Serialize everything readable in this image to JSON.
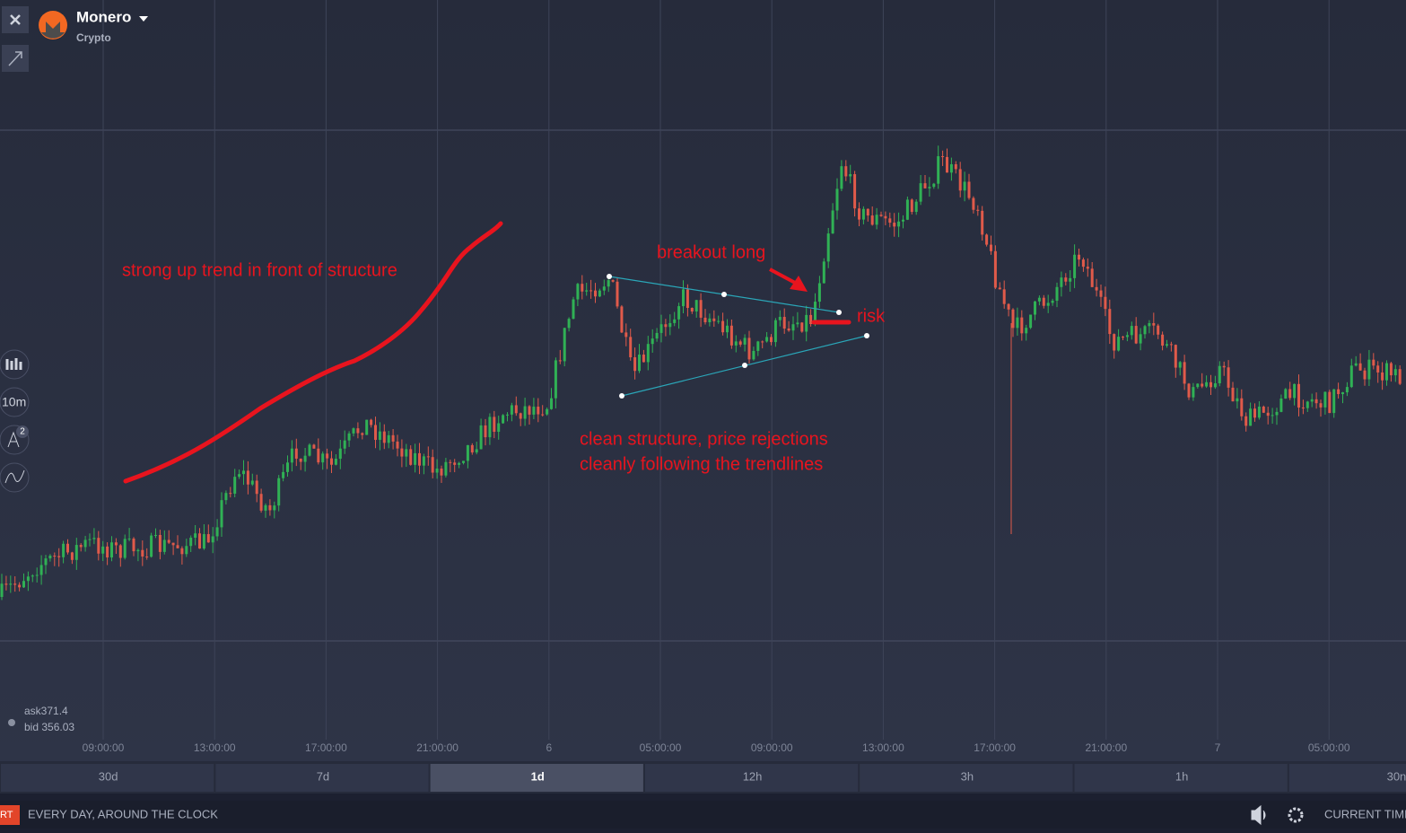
{
  "header": {
    "asset": "Monero",
    "category": "Crypto"
  },
  "quote": {
    "ask": "ask371.4",
    "bid": "bid 356.03"
  },
  "tools": {
    "interval": "10m",
    "badge": "2"
  },
  "time_axis": [
    "09:00:00",
    "13:00:00",
    "17:00:00",
    "21:00:00",
    "6",
    "05:00:00",
    "09:00:00",
    "13:00:00",
    "17:00:00",
    "21:00:00",
    "7",
    "05:00:00"
  ],
  "periods": {
    "items": [
      "30d",
      "7d",
      "1d",
      "12h",
      "3h",
      "1h",
      "30n"
    ],
    "active": "1d"
  },
  "annotations": {
    "trend": "strong up trend in front of structure",
    "breakout": "breakout long",
    "risk": "risk",
    "structure_1": "clean structure, price rejections",
    "structure_2": "cleanly following the trendlines"
  },
  "footer": {
    "button": "RT",
    "slogan": "EVERY DAY, AROUND THE CLOCK",
    "time": "CURRENT TIME"
  }
}
